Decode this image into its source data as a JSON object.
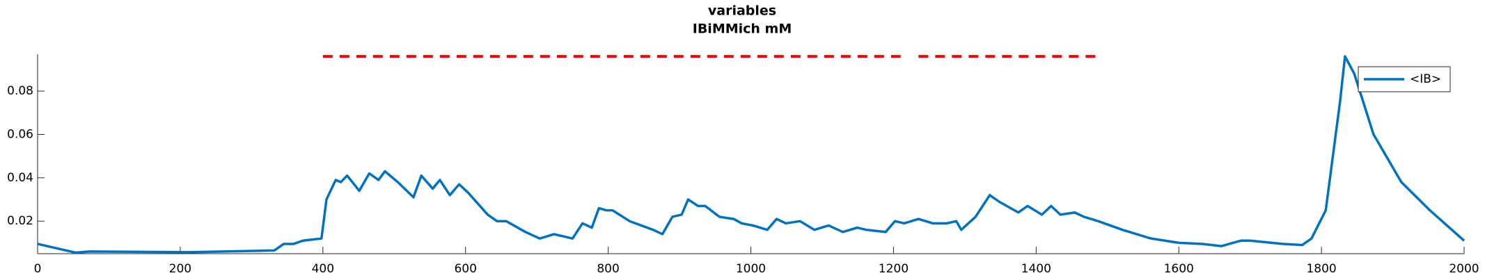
{
  "chart_data": {
    "type": "line",
    "title": "variables",
    "subtitle": "IBiMMich mM",
    "xlim": [
      0,
      2000
    ],
    "xticks": [
      0,
      200,
      400,
      600,
      800,
      1000,
      1200,
      1400,
      1600,
      1800,
      2000
    ],
    "ylim": [
      0.005,
      0.097
    ],
    "yticks": [
      0.02,
      0.04,
      0.06,
      0.08
    ],
    "legend": "northeast",
    "series": [
      {
        "name": "<IB>",
        "color": "#0072bd",
        "x": [
          0,
          53,
          73,
          212,
          332,
          345,
          359,
          372,
          398,
          405,
          418,
          425,
          434,
          451,
          465,
          478,
          487,
          505,
          527,
          538,
          554,
          564,
          578,
          591,
          604,
          631,
          644,
          657,
          684,
          704,
          724,
          750,
          764,
          777,
          787,
          797,
          806,
          830,
          863,
          876,
          890,
          903,
          912,
          926,
          936,
          956,
          976,
          987,
          1003,
          1023,
          1036,
          1049,
          1069,
          1089,
          1109,
          1129,
          1149,
          1162,
          1189,
          1202,
          1215,
          1235,
          1255,
          1275,
          1288,
          1295,
          1315,
          1335,
          1348,
          1375,
          1388,
          1408,
          1421,
          1434,
          1454,
          1467,
          1487,
          1521,
          1561,
          1600,
          1633,
          1660,
          1687,
          1700,
          1746,
          1773,
          1786,
          1806,
          1826,
          1833,
          1846,
          1873,
          1912,
          1952,
          2000
        ],
        "values": [
          0.0095,
          0.0055,
          0.006,
          0.0057,
          0.0065,
          0.0095,
          0.0095,
          0.011,
          0.012,
          0.03,
          0.039,
          0.038,
          0.041,
          0.034,
          0.042,
          0.039,
          0.043,
          0.038,
          0.031,
          0.041,
          0.035,
          0.039,
          0.032,
          0.037,
          0.033,
          0.023,
          0.02,
          0.02,
          0.015,
          0.012,
          0.014,
          0.012,
          0.019,
          0.017,
          0.026,
          0.025,
          0.025,
          0.02,
          0.016,
          0.014,
          0.022,
          0.023,
          0.03,
          0.027,
          0.027,
          0.022,
          0.021,
          0.019,
          0.018,
          0.016,
          0.021,
          0.019,
          0.02,
          0.016,
          0.018,
          0.015,
          0.017,
          0.016,
          0.015,
          0.02,
          0.019,
          0.021,
          0.019,
          0.019,
          0.02,
          0.016,
          0.022,
          0.032,
          0.029,
          0.024,
          0.027,
          0.023,
          0.027,
          0.023,
          0.024,
          0.022,
          0.02,
          0.016,
          0.012,
          0.01,
          0.0095,
          0.0085,
          0.011,
          0.011,
          0.0095,
          0.009,
          0.012,
          0.025,
          0.075,
          0.096,
          0.088,
          0.06,
          0.038,
          0.025,
          0.011
        ]
      },
      {
        "color": "#ff0000",
        "dashed": true,
        "x": [
          400,
          1210,
          null,
          1235,
          1490
        ],
        "values": [
          0.096,
          0.096,
          null,
          0.096,
          0.096
        ]
      }
    ]
  }
}
